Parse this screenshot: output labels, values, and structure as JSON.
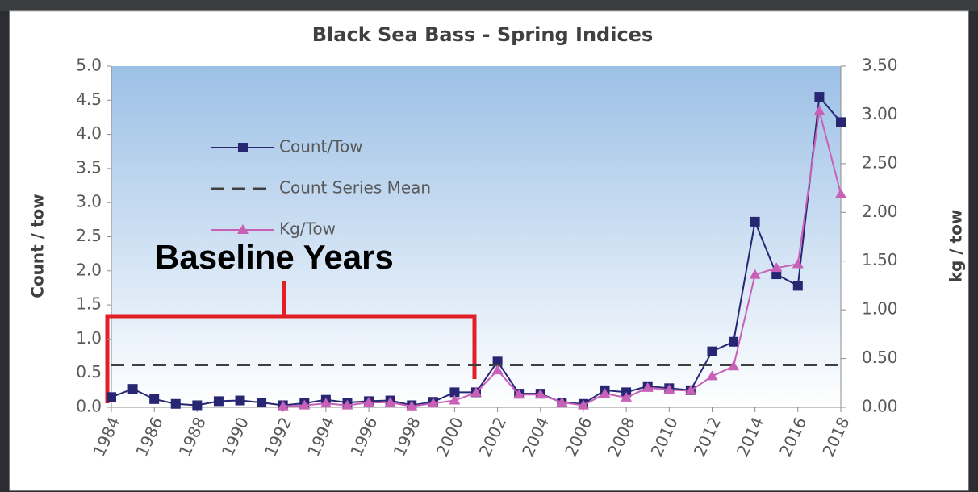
{
  "chart_data": {
    "type": "line",
    "title": "Black Sea Bass - Spring Indices",
    "ylabel": "Count / tow",
    "y2label": "kg / tow",
    "annotation": "Baseline Years",
    "legend": "upper left",
    "x": [
      1984,
      1985,
      1986,
      1987,
      1988,
      1989,
      1990,
      1991,
      1992,
      1993,
      1994,
      1995,
      1996,
      1997,
      1998,
      1999,
      2000,
      2001,
      2002,
      2003,
      2004,
      2005,
      2006,
      2007,
      2008,
      2009,
      2010,
      2011,
      2012,
      2013,
      2014,
      2015,
      2016,
      2017,
      2018
    ],
    "xlim": [
      1984,
      2018
    ],
    "xticks": [
      1984,
      1986,
      1988,
      1990,
      1992,
      1994,
      1996,
      1998,
      2000,
      2002,
      2004,
      2006,
      2008,
      2010,
      2012,
      2014,
      2016,
      2018
    ],
    "ylim": [
      0,
      5
    ],
    "yticks": [
      {
        "value": 0,
        "label": "0.0"
      },
      0.5,
      {
        "value": 1,
        "label": "1.0"
      },
      1.5,
      {
        "value": 2,
        "label": "2.0"
      },
      2.5,
      {
        "value": 3,
        "label": "3.0"
      },
      3.5,
      {
        "value": 4,
        "label": "4.0"
      },
      4.5,
      {
        "value": 5,
        "label": "5.0"
      }
    ],
    "y2lim": [
      0,
      3.5
    ],
    "y2ticks": [
      {
        "value": 0,
        "label": "0.00"
      },
      {
        "value": 0.5,
        "label": "0.50"
      },
      {
        "value": 1,
        "label": "1.00"
      },
      {
        "value": 1.5,
        "label": "1.50"
      },
      {
        "value": 2,
        "label": "2.00"
      },
      {
        "value": 2.5,
        "label": "2.50"
      },
      {
        "value": 3,
        "label": "3.00"
      },
      {
        "value": 3.5,
        "label": "3.50"
      }
    ],
    "series": [
      {
        "name": "Count/Tow",
        "color": "#262673",
        "marker": "square",
        "values": [
          0.15,
          0.27,
          0.12,
          0.05,
          0.03,
          0.09,
          0.1,
          0.07,
          0.03,
          0.06,
          0.11,
          0.07,
          0.09,
          0.1,
          0.03,
          0.08,
          0.22,
          0.22,
          0.67,
          0.2,
          0.2,
          0.07,
          0.05,
          0.25,
          0.22,
          0.31,
          0.28,
          0.25,
          0.82,
          0.96,
          2.72,
          1.95,
          1.78,
          4.55,
          4.18
        ]
      },
      {
        "name": "Count Series Mean",
        "color": "#404040",
        "dashed": true,
        "value": 0.62
      },
      {
        "name": "Kg/Tow",
        "color": "#c860b8",
        "marker": "triangle",
        "axis": "y2",
        "values": [
          null,
          null,
          null,
          null,
          null,
          null,
          null,
          null,
          0.01,
          0.02,
          0.04,
          0.02,
          0.05,
          0.05,
          0.01,
          0.04,
          0.07,
          0.15,
          0.38,
          0.13,
          0.13,
          0.05,
          0.02,
          0.14,
          0.1,
          0.2,
          0.18,
          0.17,
          0.32,
          0.42,
          1.36,
          1.43,
          1.47,
          3.04,
          2.19
        ]
      }
    ]
  }
}
